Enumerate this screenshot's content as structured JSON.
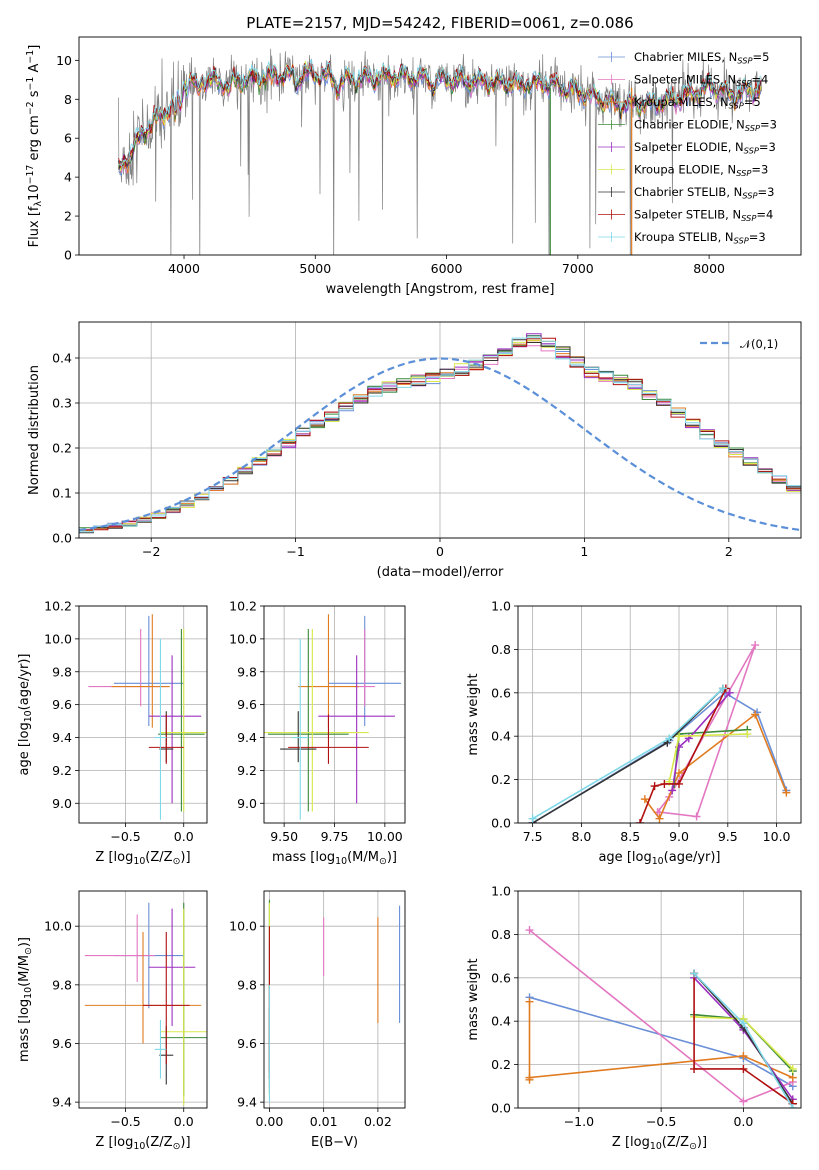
{
  "chart_data": [
    {
      "type": "line",
      "title": "PLATE=2157, MJD=54242, FIBERID=0061, z=0.086",
      "xlabel": "wavelength [Angstrom, rest frame]",
      "ylabel": "Flux [f$_\\lambda$10$^{-17}$ erg cm$^{-2}$ s$^{-1}$ A$^{-1}$]",
      "xlim": [
        3200,
        8700
      ],
      "ylim": [
        0,
        11.2
      ],
      "xticks": [
        4000,
        5000,
        6000,
        7000,
        8000
      ],
      "yticks": [
        0,
        2,
        4,
        6,
        8,
        10
      ],
      "legend_position": "upper right",
      "legend": [
        {
          "label": "Chabrier MILES, N$_{SSP}$=5",
          "color": "#6a8fd8"
        },
        {
          "label": "Salpeter MILES, N$_{SSP}$=4",
          "color": "#e377c2"
        },
        {
          "label": "Kroupa MILES, N$_{SSP}$=5",
          "color": "#e07b20"
        },
        {
          "label": "Chabrier ELODIE, N$_{SSP}$=3",
          "color": "#3a8a3a"
        },
        {
          "label": "Salpeter ELODIE, N$_{SSP}$=3",
          "color": "#9b30c0"
        },
        {
          "label": "Kroupa ELODIE, N$_{SSP}$=3",
          "color": "#d9e84a"
        },
        {
          "label": "Chabrier STELIB, N$_{SSP}$=3",
          "color": "#333333"
        },
        {
          "label": "Salpeter STELIB, N$_{SSP}$=4",
          "color": "#b01010"
        },
        {
          "label": "Kroupa STELIB, N$_{SSP}$=3",
          "color": "#7fd8e8"
        }
      ],
      "data_color": "#808080",
      "model_anchor_points": {
        "x": [
          3500,
          3600,
          3700,
          3800,
          3900,
          4000,
          4100,
          4300,
          4500,
          4700,
          5000,
          5300,
          5600,
          6000,
          6500,
          6800,
          7000,
          7300,
          7600,
          7900,
          8000,
          8200,
          8400
        ],
        "y": [
          4.2,
          5.3,
          6.4,
          7.0,
          7.6,
          8.7,
          9.0,
          8.9,
          9.0,
          9.2,
          9.3,
          9.0,
          9.2,
          9.0,
          8.8,
          8.8,
          8.4,
          7.7,
          7.8,
          8.3,
          8.7,
          8.2,
          8.6
        ]
      }
    },
    {
      "type": "bar",
      "xlabel": "(data-model)/error",
      "ylabel": "Normed distribution",
      "xlim": [
        -2.5,
        2.5
      ],
      "ylim": [
        0,
        0.48
      ],
      "xticks": [
        "−2",
        "−1",
        "0",
        "1",
        "2"
      ],
      "yticks": [
        "0.0",
        "0.1",
        "0.2",
        "0.3",
        "0.4"
      ],
      "grid": true,
      "legend_position": "upper right",
      "legend": [
        {
          "label": "$\\mathcal{N}(0,1)$",
          "color": "#5b8fd8",
          "style": "dashed"
        }
      ],
      "bin_width": 0.1,
      "bins_start": -2.5,
      "histogram_mean": [
        0.018,
        0.022,
        0.027,
        0.033,
        0.04,
        0.05,
        0.062,
        0.075,
        0.09,
        0.108,
        0.128,
        0.15,
        0.17,
        0.19,
        0.21,
        0.235,
        0.255,
        0.27,
        0.29,
        0.31,
        0.325,
        0.335,
        0.345,
        0.35,
        0.355,
        0.365,
        0.375,
        0.385,
        0.4,
        0.42,
        0.44,
        0.44,
        0.43,
        0.41,
        0.39,
        0.37,
        0.36,
        0.35,
        0.34,
        0.32,
        0.3,
        0.28,
        0.255,
        0.23,
        0.21,
        0.19,
        0.17,
        0.15,
        0.13,
        0.11,
        0.095,
        0.085,
        0.075,
        0.065,
        0.055,
        0.048,
        0.04,
        0.033,
        0.028,
        0.024
      ]
    },
    {
      "type": "scatter",
      "subtype": "errorbar",
      "xlabel": "Z [log$_{10}$(Z/Z$_\\odot$)]",
      "ylabel": "age  [log$_{10}$(age/yr)]",
      "xlim": [
        -0.9,
        0.2
      ],
      "ylim": [
        8.88,
        10.2
      ],
      "xticks": [
        "−0.5",
        "0.0"
      ],
      "yticks": [
        "9.0",
        "9.2",
        "9.4",
        "9.6",
        "9.8",
        "10.0",
        "10.2"
      ],
      "grid": true,
      "points": [
        {
          "x": -0.3,
          "xerr": [
            0.3,
            0.3
          ],
          "y": 9.73,
          "yerr": [
            0.26,
            0.41
          ],
          "color": "#6a8fd8"
        },
        {
          "x": -0.37,
          "xerr": [
            0.45,
            0.23
          ],
          "y": 9.71,
          "yerr": [
            0.12,
            0.35
          ],
          "color": "#e377c2"
        },
        {
          "x": -0.27,
          "xerr": [
            0.35,
            0.15
          ],
          "y": 9.71,
          "yerr": [
            0.25,
            0.44
          ],
          "color": "#e07b20"
        },
        {
          "x": -0.02,
          "xerr": [
            0.2,
            0.2
          ],
          "y": 9.42,
          "yerr": [
            0.47,
            0.64
          ],
          "color": "#3a8a3a"
        },
        {
          "x": -0.1,
          "xerr": [
            0.2,
            0.25
          ],
          "y": 9.53,
          "yerr": [
            0.53,
            0.37
          ],
          "color": "#9b30c0"
        },
        {
          "x": 0.0,
          "xerr": [
            0.2,
            0.2
          ],
          "y": 9.43,
          "yerr": [
            0.48,
            0.63
          ],
          "color": "#d9e84a"
        },
        {
          "x": -0.15,
          "xerr": [
            0.06,
            0.06
          ],
          "y": 9.33,
          "yerr": [
            0.08,
            0.23
          ],
          "color": "#333333"
        },
        {
          "x": -0.15,
          "xerr": [
            0.15,
            0.15
          ],
          "y": 9.34,
          "yerr": [
            0.1,
            0.2
          ],
          "color": "#b01010"
        },
        {
          "x": -0.2,
          "xerr": [
            0.05,
            0.05
          ],
          "y": 9.4,
          "yerr": [
            0.5,
            0.6
          ],
          "color": "#7fd8e8"
        }
      ]
    },
    {
      "type": "scatter",
      "subtype": "errorbar",
      "xlabel": "mass [log$_{10}$(M/M$_\\odot$)]",
      "ylabel": "",
      "xlim": [
        9.4,
        10.1
      ],
      "ylim": [
        8.88,
        10.2
      ],
      "xticks": [
        "9.50",
        "9.75",
        "10.00"
      ],
      "yticks": [
        "9.0",
        "9.2",
        "9.4",
        "9.6",
        "9.8",
        "10.0",
        "10.2"
      ],
      "grid": true,
      "points": [
        {
          "x": 9.9,
          "xerr": [
            0.18,
            0.18
          ],
          "y": 9.73,
          "yerr": [
            0.26,
            0.41
          ],
          "color": "#6a8fd8"
        },
        {
          "x": 9.9,
          "xerr": [
            0.05,
            0.05
          ],
          "y": 9.71,
          "yerr": [
            0.12,
            0.35
          ],
          "color": "#e377c2"
        },
        {
          "x": 9.72,
          "xerr": [
            0.15,
            0.15
          ],
          "y": 9.71,
          "yerr": [
            0.25,
            0.44
          ],
          "color": "#e07b20"
        },
        {
          "x": 9.62,
          "xerr": [
            0.2,
            0.2
          ],
          "y": 9.42,
          "yerr": [
            0.47,
            0.64
          ],
          "color": "#3a8a3a"
        },
        {
          "x": 9.86,
          "xerr": [
            0.19,
            0.19
          ],
          "y": 9.53,
          "yerr": [
            0.53,
            0.37
          ],
          "color": "#9b30c0"
        },
        {
          "x": 9.64,
          "xerr": [
            0.28,
            0.28
          ],
          "y": 9.43,
          "yerr": [
            0.48,
            0.63
          ],
          "color": "#d9e84a"
        },
        {
          "x": 9.57,
          "xerr": [
            0.09,
            0.09
          ],
          "y": 9.33,
          "yerr": [
            0.08,
            0.23
          ],
          "color": "#333333"
        },
        {
          "x": 9.72,
          "xerr": [
            0.2,
            0.2
          ],
          "y": 9.34,
          "yerr": [
            0.1,
            0.2
          ],
          "color": "#b01010"
        },
        {
          "x": 9.58,
          "xerr": [
            0.04,
            0.04
          ],
          "y": 9.4,
          "yerr": [
            0.5,
            0.6
          ],
          "color": "#7fd8e8"
        }
      ]
    },
    {
      "type": "line",
      "xlabel": "age  [log$_{10}$(age/yr)]",
      "ylabel": "mass weight",
      "xlim": [
        7.35,
        10.25
      ],
      "ylim": [
        0,
        1.0
      ],
      "xticks": [
        "7.5",
        "8.0",
        "8.5",
        "9.0",
        "9.5",
        "10.0"
      ],
      "yticks": [
        "0.0",
        "0.2",
        "0.4",
        "0.6",
        "0.8",
        "1.0"
      ],
      "grid": true,
      "series": [
        {
          "color": "#6a8fd8",
          "x": [
            7.5,
            8.9,
            9.47,
            9.8,
            10.1
          ],
          "y": [
            0.0,
            0.38,
            0.6,
            0.51,
            0.15
          ]
        },
        {
          "color": "#e377c2",
          "x": [
            8.8,
            9.18,
            9.78,
            8.9,
            8.78
          ],
          "y": [
            0.05,
            0.03,
            0.82,
            0.12,
            0.05
          ]
        },
        {
          "color": "#e07b20",
          "x": [
            8.65,
            8.8,
            9.0,
            9.78,
            10.1
          ],
          "y": [
            0.11,
            0.02,
            0.23,
            0.5,
            0.14
          ]
        },
        {
          "color": "#3a8a3a",
          "x": [
            8.95,
            9.0,
            9.7
          ],
          "y": [
            0.18,
            0.41,
            0.43
          ]
        },
        {
          "color": "#9b30c0",
          "x": [
            8.93,
            9.0,
            9.1,
            9.52
          ],
          "y": [
            0.15,
            0.35,
            0.39,
            0.6
          ]
        },
        {
          "color": "#d9e84a",
          "x": [
            8.9,
            9.0,
            9.7
          ],
          "y": [
            0.19,
            0.4,
            0.41
          ]
        },
        {
          "color": "#333333",
          "x": [
            7.5,
            8.88,
            9.45
          ],
          "y": [
            0.0,
            0.37,
            0.62
          ]
        },
        {
          "color": "#b01010",
          "x": [
            8.6,
            8.75,
            8.85,
            9.0,
            9.48
          ],
          "y": [
            0.0,
            0.17,
            0.18,
            0.18,
            0.62
          ]
        },
        {
          "color": "#7fd8e8",
          "x": [
            7.5,
            8.9,
            9.45
          ],
          "y": [
            0.02,
            0.39,
            0.62
          ]
        }
      ]
    },
    {
      "type": "scatter",
      "subtype": "errorbar",
      "xlabel": "Z [log$_{10}$(Z/Z$_\\odot$)]",
      "ylabel": "mass [log$_{10}$(M/M$_\\odot$)]",
      "xlim": [
        -0.9,
        0.2
      ],
      "ylim": [
        9.38,
        10.12
      ],
      "xticks": [
        "−0.5",
        "0.0"
      ],
      "yticks": [
        "9.4",
        "9.6",
        "9.8",
        "10.0"
      ],
      "grid": true,
      "points": [
        {
          "x": -0.3,
          "xerr": [
            0.3,
            0.3
          ],
          "y": 9.9,
          "yerr": [
            0.18,
            0.18
          ],
          "color": "#6a8fd8"
        },
        {
          "x": -0.4,
          "xerr": [
            0.45,
            0.15
          ],
          "y": 9.9,
          "yerr": [
            0.09,
            0.14
          ],
          "color": "#e377c2"
        },
        {
          "x": -0.35,
          "xerr": [
            0.5,
            0.5
          ],
          "y": 9.73,
          "yerr": [
            0.13,
            0.25
          ],
          "color": "#e07b20"
        },
        {
          "x": 0.0,
          "xerr": [
            0.2,
            0.2
          ],
          "y": 9.62,
          "yerr": [
            0.2,
            0.46
          ],
          "color": "#3a8a3a"
        },
        {
          "x": -0.1,
          "xerr": [
            0.2,
            0.2
          ],
          "y": 9.86,
          "yerr": [
            0.2,
            0.2
          ],
          "color": "#9b30c0"
        },
        {
          "x": 0.0,
          "xerr": [
            0.2,
            0.2
          ],
          "y": 9.64,
          "yerr": [
            0.25,
            0.42
          ],
          "color": "#d9e84a"
        },
        {
          "x": -0.15,
          "xerr": [
            0.06,
            0.06
          ],
          "y": 9.56,
          "yerr": [
            0.1,
            0.1
          ],
          "color": "#333333"
        },
        {
          "x": -0.15,
          "xerr": [
            0.2,
            0.2
          ],
          "y": 9.73,
          "yerr": [
            0.2,
            0.25
          ],
          "color": "#b01010"
        },
        {
          "x": -0.2,
          "xerr": [
            0.05,
            0.05
          ],
          "y": 9.58,
          "yerr": [
            0.1,
            0.1
          ],
          "color": "#7fd8e8"
        }
      ]
    },
    {
      "type": "scatter",
      "subtype": "errorbar",
      "xlabel": "E(B-V)",
      "ylabel": "",
      "xlim": [
        -0.001,
        0.025
      ],
      "ylim": [
        9.38,
        10.12
      ],
      "xticks": [
        "0.00",
        "0.01",
        "0.02"
      ],
      "yticks": [
        "9.4",
        "9.6",
        "9.8",
        "10.0"
      ],
      "grid": true,
      "points": [
        {
          "x": 0.024,
          "y": 9.87,
          "yerr": [
            0.2,
            0.2
          ],
          "color": "#6a8fd8"
        },
        {
          "x": 0.01,
          "y": 9.93,
          "yerr": [
            0.1,
            0.1
          ],
          "color": "#e377c2"
        },
        {
          "x": 0.02,
          "y": 9.85,
          "yerr": [
            0.18,
            0.18
          ],
          "color": "#e07b20"
        },
        {
          "x": 0.0,
          "y": 9.76,
          "yerr": [
            0.33,
            0.33
          ],
          "color": "#3a8a3a"
        },
        {
          "x": 0.0,
          "y": 9.7,
          "yerr": [
            0.25,
            0.25
          ],
          "color": "#9b30c0"
        },
        {
          "x": 0.0,
          "y": 9.75,
          "yerr": [
            0.33,
            0.33
          ],
          "color": "#d9e84a"
        },
        {
          "x": 0.0,
          "y": 9.6,
          "yerr": [
            0.12,
            0.12
          ],
          "color": "#333333"
        },
        {
          "x": 0.0,
          "y": 9.75,
          "yerr": [
            0.25,
            0.25
          ],
          "color": "#b01010"
        },
        {
          "x": 0.0,
          "y": 9.6,
          "yerr": [
            0.2,
            0.2
          ],
          "color": "#7fd8e8"
        }
      ]
    },
    {
      "type": "line",
      "xlabel": "Z [log$_{10}$(Z/Z$_\\odot$)]",
      "ylabel": "mass weight",
      "xlim": [
        -1.37,
        0.35
      ],
      "ylim": [
        0,
        1.0
      ],
      "xticks": [
        "−1.0",
        "−0.5",
        "0.0"
      ],
      "yticks": [
        "0.0",
        "0.2",
        "0.4",
        "0.6",
        "0.8",
        "1.0"
      ],
      "grid": true,
      "series": [
        {
          "color": "#6a8fd8",
          "x": [
            -1.3,
            0.0,
            0.3
          ],
          "y": [
            0.51,
            0.23,
            0.1
          ]
        },
        {
          "color": "#e377c2",
          "x": [
            -1.3,
            0.0,
            0.3
          ],
          "y": [
            0.82,
            0.03,
            0.12
          ]
        },
        {
          "color": "#e07b20",
          "x": [
            -1.3,
            -1.3,
            -1.3,
            0.0,
            0.3
          ],
          "y": [
            0.49,
            0.13,
            0.14,
            0.24,
            0.14
          ]
        },
        {
          "color": "#3a8a3a",
          "x": [
            -0.3,
            0.0,
            0.3
          ],
          "y": [
            0.43,
            0.41,
            0.17
          ]
        },
        {
          "color": "#9b30c0",
          "x": [
            -0.3,
            0.0,
            0.3
          ],
          "y": [
            0.6,
            0.36,
            0.04
          ]
        },
        {
          "color": "#d9e84a",
          "x": [
            -0.3,
            0.0,
            0.3
          ],
          "y": [
            0.42,
            0.41,
            0.18
          ]
        },
        {
          "color": "#333333",
          "x": [
            -0.3,
            0.0,
            0.3
          ],
          "y": [
            0.62,
            0.37,
            0.02
          ]
        },
        {
          "color": "#b01010",
          "x": [
            -0.3,
            -0.3,
            0.0,
            0.3,
            0.3
          ],
          "y": [
            0.62,
            0.18,
            0.18,
            0.02,
            0.02
          ]
        },
        {
          "color": "#7fd8e8",
          "x": [
            -0.3,
            0.0,
            0.3
          ],
          "y": [
            0.62,
            0.39,
            0.0
          ]
        }
      ]
    }
  ]
}
